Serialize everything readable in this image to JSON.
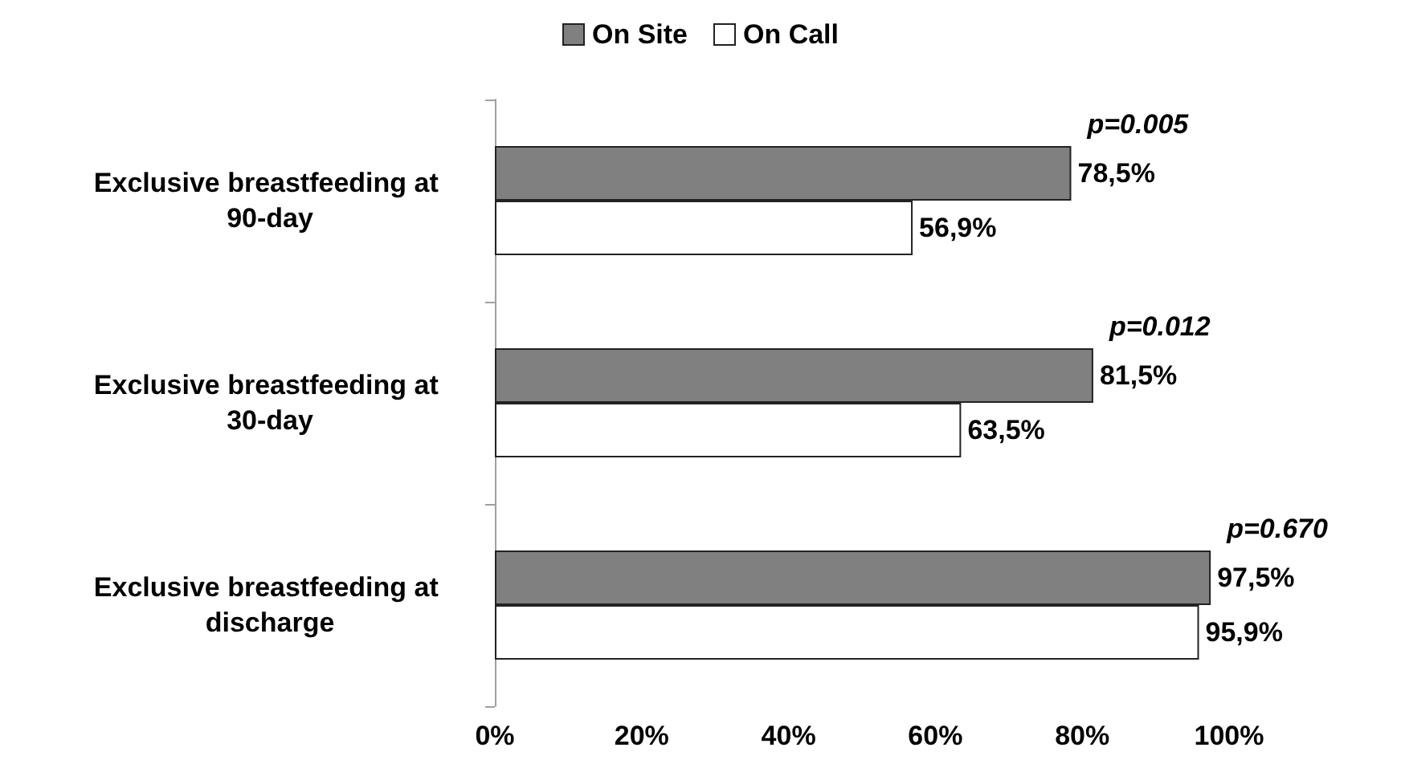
{
  "chart_data": {
    "type": "bar",
    "orientation": "horizontal",
    "categories": [
      "Exclusive breastfeeding at 90-day",
      "Exclusive breastfeeding at 30-day",
      "Exclusive breastfeeding at discharge"
    ],
    "series": [
      {
        "name": "On Site",
        "color": "#808080",
        "values": [
          78.5,
          81.5,
          97.5
        ],
        "value_labels": [
          "78,5%",
          "81,5%",
          "97,5%"
        ]
      },
      {
        "name": "On Call",
        "color": "#ffffff",
        "values": [
          56.9,
          63.5,
          95.9
        ],
        "value_labels": [
          "56,9%",
          "63,5%",
          "95,9%"
        ]
      }
    ],
    "xlim": [
      0,
      100
    ],
    "xticks": [
      {
        "value": 0,
        "label": "0%"
      },
      {
        "value": 20,
        "label": "20%"
      },
      {
        "value": 40,
        "label": "40%"
      },
      {
        "value": 60,
        "label": "60%"
      },
      {
        "value": 80,
        "label": "80%"
      },
      {
        "value": 100,
        "label": "100%"
      }
    ],
    "annotations": [
      {
        "text": "p=0.005",
        "x": 78.5,
        "y": "Exclusive breastfeeding at 90-day"
      },
      {
        "text": "p=0.012",
        "x": 81.5,
        "y": "Exclusive breastfeeding at 30-day"
      },
      {
        "text": "p=0.670",
        "x": 97.5,
        "y": "Exclusive breastfeeding at discharge"
      }
    ],
    "grid": false,
    "legend": "top"
  }
}
